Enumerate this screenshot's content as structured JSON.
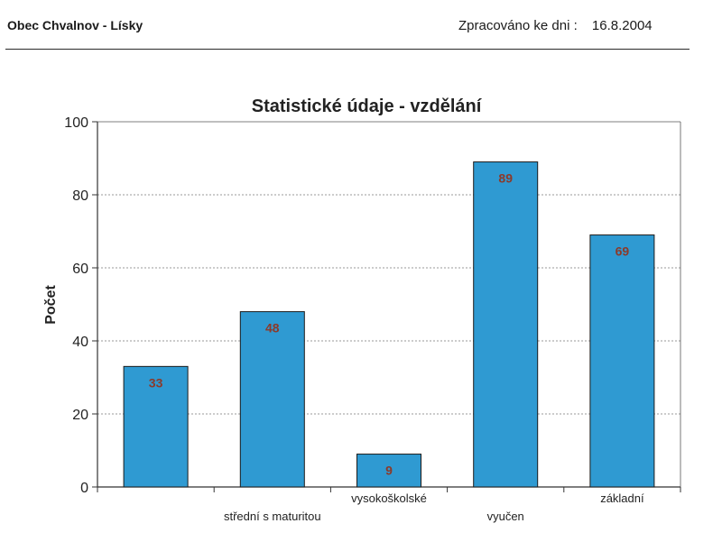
{
  "header": {
    "municipality": "Obec Chvalnov - Lísky",
    "processed_label": "Zpracováno ke dni :",
    "processed_date": "16.8.2004"
  },
  "chart_data": {
    "type": "bar",
    "title": "Statistické údaje - vzdělání",
    "xlabel": "",
    "ylabel": "Počet",
    "categories": [
      "",
      "střední s maturitou",
      "vysokoškolské",
      "vyučen",
      "základní"
    ],
    "values": [
      33,
      48,
      9,
      89,
      69
    ],
    "ylim": [
      0,
      100
    ],
    "yticks": [
      0,
      20,
      40,
      60,
      80,
      100
    ],
    "grid": true,
    "bar_color": "#2f9ad2",
    "label_color": "#8b3a2a"
  }
}
